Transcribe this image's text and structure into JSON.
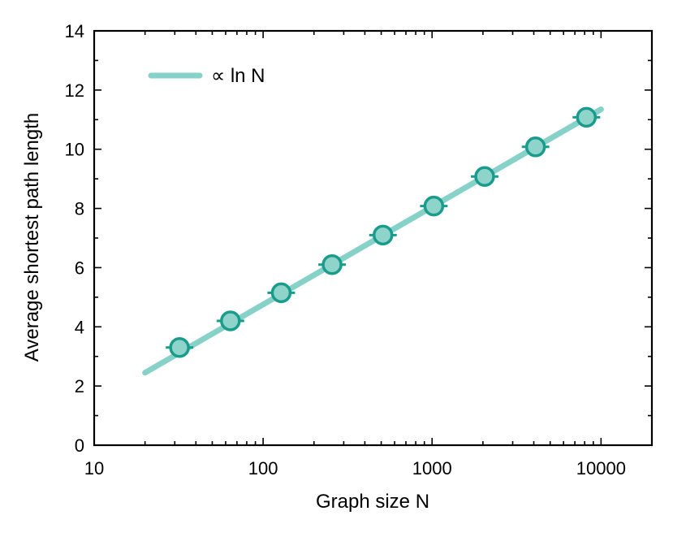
{
  "chart_data": {
    "type": "scatter",
    "title": "",
    "xlabel": "Graph size N",
    "ylabel": "Average shortest path length",
    "xscale": "log",
    "xlim": [
      10,
      20000
    ],
    "ylim": [
      0,
      14
    ],
    "x_ticks": [
      10,
      100,
      1000,
      10000
    ],
    "x_tick_labels": [
      "10",
      "100",
      "1000",
      "10000"
    ],
    "y_ticks": [
      0,
      2,
      4,
      6,
      8,
      10,
      12,
      14
    ],
    "y_tick_labels": [
      "0",
      "2",
      "4",
      "6",
      "8",
      "10",
      "12",
      "14"
    ],
    "grid": false,
    "legend": {
      "position": "top-left",
      "entries": [
        "∝ ln N"
      ]
    },
    "series": [
      {
        "kind": "points",
        "color": "#1a9c8c",
        "fill": "#8ed4cb",
        "x": [
          32,
          64,
          128,
          256,
          512,
          1024,
          2048,
          4096,
          8192
        ],
        "y": [
          3.3,
          4.2,
          5.15,
          6.1,
          7.1,
          8.08,
          9.08,
          10.08,
          11.08
        ]
      },
      {
        "name": "∝ ln N",
        "kind": "fit",
        "color": "#86d1c8",
        "x": [
          20,
          10000
        ],
        "y": [
          2.45,
          11.35
        ]
      }
    ]
  }
}
